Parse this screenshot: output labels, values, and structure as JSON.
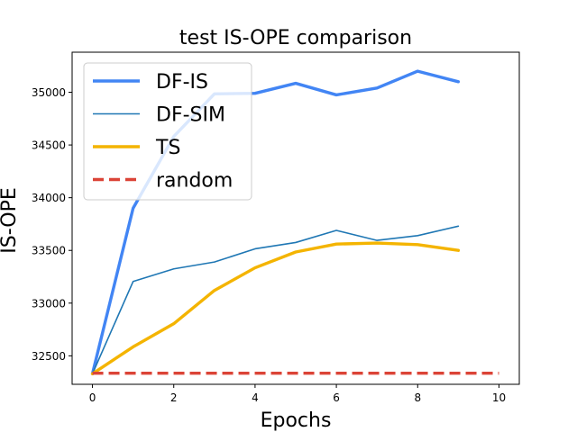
{
  "chart_data": {
    "type": "line",
    "title": "test IS-OPE comparison",
    "xlabel": "Epochs",
    "ylabel": "IS-OPE",
    "xlim": [
      -0.5,
      10.5
    ],
    "ylim": [
      32230,
      35380
    ],
    "xticks": [
      0,
      2,
      4,
      6,
      8,
      10
    ],
    "xtick_labels": [
      "0",
      "2",
      "4",
      "6",
      "8",
      "10"
    ],
    "yticks": [
      32500,
      33000,
      33500,
      34000,
      34500,
      35000
    ],
    "ytick_labels": [
      "32500",
      "33000",
      "33500",
      "34000",
      "34500",
      "35000"
    ],
    "grid": false,
    "legend_position": "upper-left",
    "series": [
      {
        "name": "DF-IS",
        "color": "#4285f4",
        "style": "solid",
        "weight": "thick",
        "x": [
          0,
          1,
          2,
          3,
          4,
          5,
          6,
          7,
          8,
          9
        ],
        "y": [
          32330,
          33900,
          34580,
          34985,
          34990,
          35085,
          34975,
          35040,
          35200,
          35100
        ]
      },
      {
        "name": "DF-SIM",
        "color": "#1f77b4",
        "style": "solid",
        "weight": "thin",
        "x": [
          0,
          1,
          2,
          3,
          4,
          5,
          6,
          7,
          8,
          9
        ],
        "y": [
          32330,
          33205,
          33325,
          33390,
          33515,
          33575,
          33690,
          33595,
          33640,
          33730
        ]
      },
      {
        "name": "TS",
        "color": "#f4b400",
        "style": "solid",
        "weight": "thick",
        "x": [
          0,
          1,
          2,
          3,
          4,
          5,
          6,
          7,
          8,
          9
        ],
        "y": [
          32330,
          32585,
          32805,
          33120,
          33335,
          33485,
          33560,
          33570,
          33555,
          33500
        ]
      },
      {
        "name": "random",
        "color": "#db4437",
        "style": "dashed",
        "weight": "thick",
        "x": [
          0,
          10
        ],
        "y": [
          32335,
          32335
        ]
      }
    ]
  }
}
